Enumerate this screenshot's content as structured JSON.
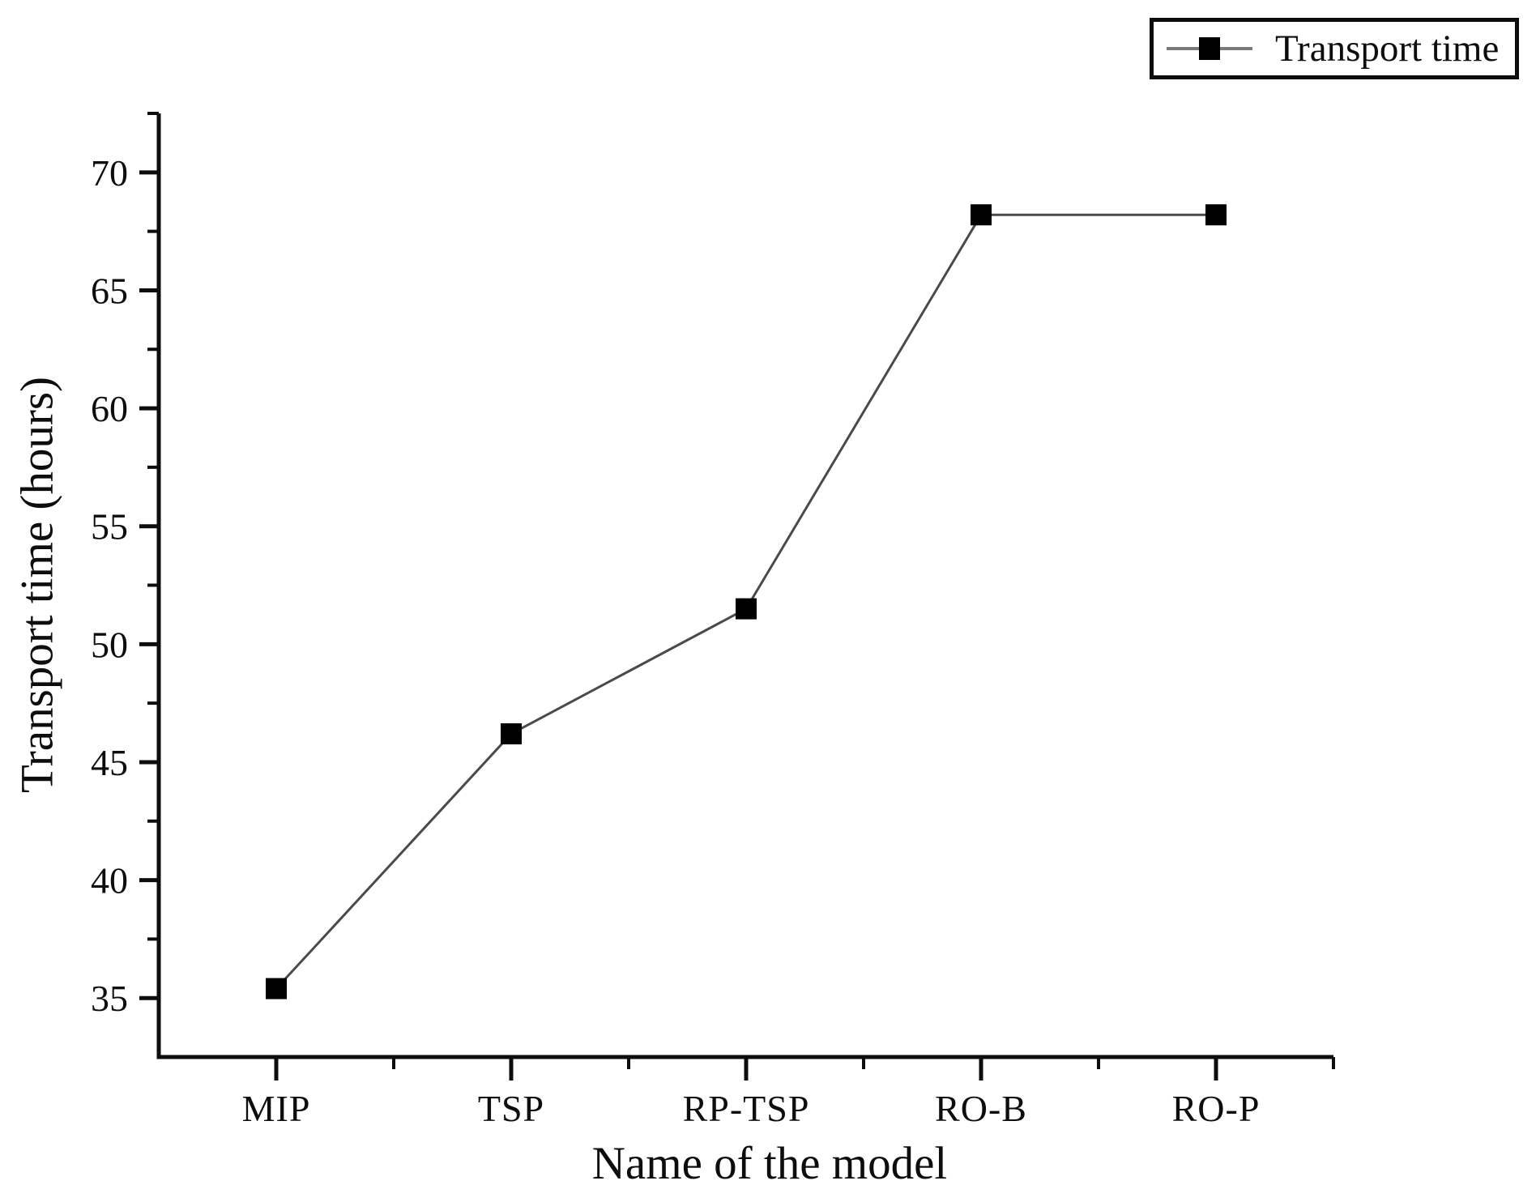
{
  "chart_data": {
    "type": "line",
    "title": "",
    "xlabel": "Name of the model",
    "ylabel": "Transport time (hours)",
    "categories": [
      "MIP",
      "TSP",
      "RP-TSP",
      "RO-B",
      "RO-P"
    ],
    "series": [
      {
        "name": "Transport time",
        "marker": "filled-square",
        "values": [
          35.4,
          46.2,
          51.5,
          68.2,
          68.2
        ]
      }
    ],
    "ylim": [
      32.5,
      72.5
    ],
    "yticks": [
      35,
      40,
      45,
      50,
      55,
      60,
      65,
      70
    ],
    "yticks_minor": [
      37.5,
      42.5,
      47.5,
      52.5,
      57.5,
      62.5,
      67.5,
      72.5
    ],
    "grid": false,
    "legend_position": "top-right",
    "colors": {
      "marker": "#000000",
      "line": "#4a4a4a",
      "axis": "#0d0d0d",
      "legend_line": "#7a7a7a",
      "text": "#0d0d0d",
      "background": "#ffffff"
    }
  }
}
